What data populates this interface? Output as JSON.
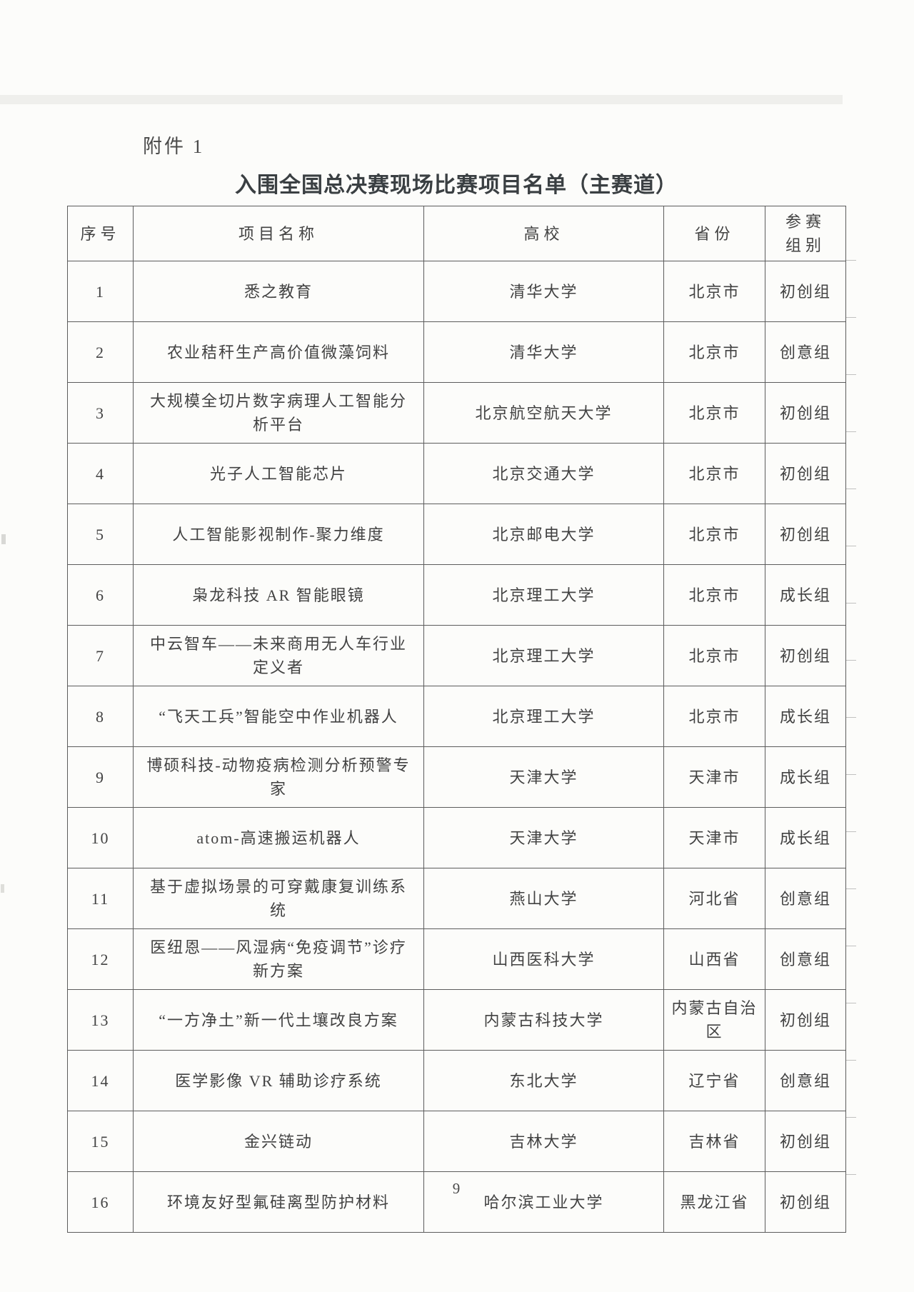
{
  "page": {
    "attachment_label": "附件 1",
    "title": "入围全国总决赛现场比赛项目名单（主赛道）",
    "page_number": "9"
  },
  "table": {
    "headers": [
      "序号",
      "项目名称",
      "高校",
      "省份",
      "参赛组别"
    ],
    "rows": [
      {
        "no": "1",
        "project": "悉之教育",
        "university": "清华大学",
        "province": "北京市",
        "group": "初创组"
      },
      {
        "no": "2",
        "project": "农业秸秆生产高价值微藻饲料",
        "university": "清华大学",
        "province": "北京市",
        "group": "创意组"
      },
      {
        "no": "3",
        "project": "大规模全切片数字病理人工智能分析平台",
        "university": "北京航空航天大学",
        "province": "北京市",
        "group": "初创组"
      },
      {
        "no": "4",
        "project": "光子人工智能芯片",
        "university": "北京交通大学",
        "province": "北京市",
        "group": "初创组"
      },
      {
        "no": "5",
        "project": "人工智能影视制作-聚力维度",
        "university": "北京邮电大学",
        "province": "北京市",
        "group": "初创组"
      },
      {
        "no": "6",
        "project": "枭龙科技 AR 智能眼镜",
        "university": "北京理工大学",
        "province": "北京市",
        "group": "成长组"
      },
      {
        "no": "7",
        "project": "中云智车——未来商用无人车行业定义者",
        "university": "北京理工大学",
        "province": "北京市",
        "group": "初创组"
      },
      {
        "no": "8",
        "project": "“飞天工兵”智能空中作业机器人",
        "university": "北京理工大学",
        "province": "北京市",
        "group": "成长组"
      },
      {
        "no": "9",
        "project": "博硕科技-动物疫病检测分析预警专家",
        "university": "天津大学",
        "province": "天津市",
        "group": "成长组"
      },
      {
        "no": "10",
        "project": "atom-高速搬运机器人",
        "university": "天津大学",
        "province": "天津市",
        "group": "成长组"
      },
      {
        "no": "11",
        "project": "基于虚拟场景的可穿戴康复训练系统",
        "university": "燕山大学",
        "province": "河北省",
        "group": "创意组"
      },
      {
        "no": "12",
        "project": "医纽恩——风湿病“免疫调节”诊疗新方案",
        "university": "山西医科大学",
        "province": "山西省",
        "group": "创意组"
      },
      {
        "no": "13",
        "project": "“一方净土”新一代土壤改良方案",
        "university": "内蒙古科技大学",
        "province": "内蒙古自治区",
        "group": "初创组"
      },
      {
        "no": "14",
        "project": "医学影像 VR 辅助诊疗系统",
        "university": "东北大学",
        "province": "辽宁省",
        "group": "创意组"
      },
      {
        "no": "15",
        "project": "金兴链动",
        "university": "吉林大学",
        "province": "吉林省",
        "group": "初创组"
      },
      {
        "no": "16",
        "project": "环境友好型氟硅离型防护材料",
        "university": "哈尔滨工业大学",
        "province": "黑龙江省",
        "group": "初创组"
      }
    ]
  },
  "colors": {
    "paper": "#fcfcfa",
    "text": "#424242",
    "title_text": "#3a3f42",
    "border": "#5c5c5c"
  }
}
